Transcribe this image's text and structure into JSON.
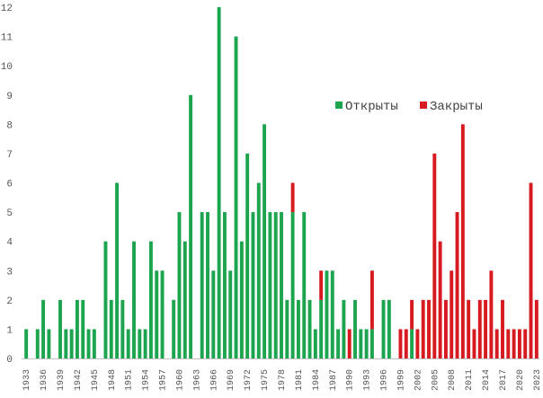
{
  "chart_data": {
    "type": "bar",
    "title": "",
    "xlabel": "",
    "ylabel": "",
    "ylim": [
      0,
      12
    ],
    "y_ticks": [
      "0",
      "1",
      "2",
      "3",
      "4",
      "5",
      "6",
      "7",
      "8",
      "9",
      "10",
      "11",
      "12"
    ],
    "grid": false,
    "legend_position": "right",
    "colors": {
      "opened": "#1ca54e",
      "closed": "#d71920",
      "axis": "#bfbfbf"
    },
    "x_tick_labels": [
      "1933",
      "1936",
      "1939",
      "1942",
      "1945",
      "1948",
      "1951",
      "1954",
      "1957",
      "1960",
      "1963",
      "1966",
      "1969",
      "1972",
      "1975",
      "1978",
      "1981",
      "1984",
      "1987",
      "1990",
      "1993",
      "1996",
      "1999",
      "2002",
      "2005",
      "2008",
      "2011",
      "2014",
      "2017",
      "2020",
      "2023"
    ],
    "categories": [
      1933,
      1934,
      1935,
      1936,
      1937,
      1938,
      1939,
      1940,
      1941,
      1942,
      1943,
      1944,
      1945,
      1946,
      1947,
      1948,
      1949,
      1950,
      1951,
      1952,
      1953,
      1954,
      1955,
      1956,
      1957,
      1958,
      1959,
      1960,
      1961,
      1962,
      1963,
      1964,
      1965,
      1966,
      1967,
      1968,
      1969,
      1970,
      1971,
      1972,
      1973,
      1974,
      1975,
      1976,
      1977,
      1978,
      1979,
      1980,
      1981,
      1982,
      1983,
      1984,
      1985,
      1986,
      1987,
      1988,
      1989,
      1990,
      1991,
      1992,
      1993,
      1994,
      1995,
      1996,
      1997,
      1998,
      1999,
      2000,
      2001,
      2002,
      2003,
      2004,
      2005,
      2006,
      2007,
      2008,
      2009,
      2010,
      2011,
      2012,
      2013,
      2014,
      2015,
      2016,
      2017,
      2018,
      2019,
      2020,
      2021,
      2022,
      2023
    ],
    "series": [
      {
        "name": "Открыты",
        "values": [
          1,
          0,
          1,
          2,
          1,
          0,
          2,
          1,
          1,
          2,
          2,
          1,
          1,
          0,
          4,
          2,
          6,
          2,
          1,
          4,
          1,
          1,
          4,
          3,
          3,
          0,
          2,
          5,
          4,
          9,
          0,
          5,
          5,
          3,
          12,
          5,
          3,
          11,
          4,
          7,
          5,
          6,
          8,
          5,
          5,
          5,
          2,
          5,
          2,
          5,
          2,
          1,
          2,
          3,
          3,
          1,
          2,
          0,
          2,
          1,
          1,
          1,
          0,
          2,
          2,
          0,
          0,
          0,
          1,
          0,
          0,
          0,
          0,
          0,
          0,
          0,
          0,
          0,
          0,
          0,
          0,
          0,
          0,
          0,
          0,
          0,
          0,
          0,
          0,
          0,
          0
        ]
      },
      {
        "name": "Закрыты",
        "values": [
          0,
          0,
          0,
          0,
          0,
          0,
          0,
          0,
          0,
          0,
          0,
          0,
          0,
          0,
          0,
          0,
          0,
          0,
          0,
          0,
          0,
          0,
          0,
          0,
          0,
          0,
          0,
          0,
          0,
          0,
          0,
          0,
          0,
          0,
          0,
          0,
          0,
          0,
          0,
          0,
          0,
          0,
          0,
          0,
          0,
          0,
          0,
          1,
          0,
          0,
          0,
          0,
          1,
          0,
          0,
          0,
          0,
          1,
          0,
          0,
          0,
          2,
          0,
          0,
          0,
          0,
          1,
          1,
          1,
          1,
          2,
          2,
          7,
          4,
          2,
          3,
          5,
          8,
          2,
          1,
          2,
          2,
          3,
          1,
          2,
          1,
          1,
          1,
          1,
          6,
          2
        ]
      }
    ]
  }
}
